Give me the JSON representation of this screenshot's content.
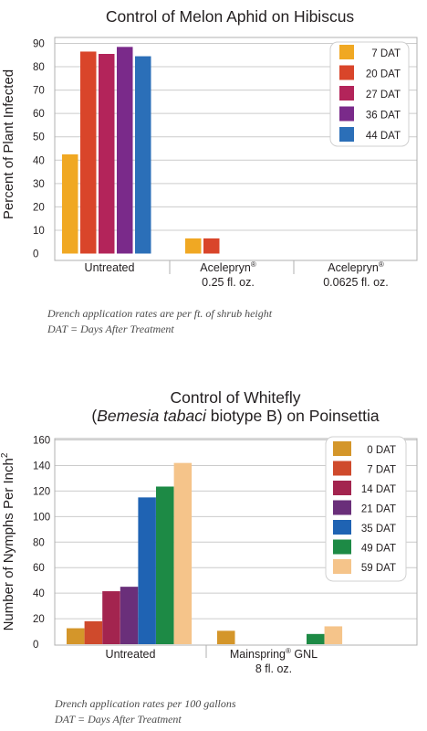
{
  "chart_data": [
    {
      "type": "bar",
      "title": "Control of Melon Aphid on Hibiscus",
      "ylabel": "Percent of Plant Infected",
      "ylim": [
        0,
        90
      ],
      "yticks": [
        "0",
        "10",
        "20",
        "30",
        "40",
        "50",
        "60",
        "70",
        "80",
        "90"
      ],
      "categories": [
        {
          "line1": "Untreated",
          "reg": "",
          "line2": ""
        },
        {
          "line1": "Acelepryn",
          "reg": "®",
          "line2": "0.25 fl. oz."
        },
        {
          "line1": "Acelepryn",
          "reg": "®",
          "line2": "0.0625 fl. oz."
        }
      ],
      "series": [
        {
          "name": "7 DAT",
          "color": "#f0a823",
          "values": [
            42.5,
            6.5,
            0
          ]
        },
        {
          "name": "20 DAT",
          "color": "#d9452a",
          "values": [
            86.5,
            6.5,
            0
          ]
        },
        {
          "name": "27 DAT",
          "color": "#b3245a",
          "values": [
            85.5,
            0,
            0
          ]
        },
        {
          "name": "36 DAT",
          "color": "#7a2a8a",
          "values": [
            88.5,
            0,
            0
          ]
        },
        {
          "name": "44 DAT",
          "color": "#2b6fb8",
          "values": [
            84.5,
            0,
            0
          ]
        }
      ],
      "grid": true,
      "legend": "top-right",
      "notes": [
        "Drench application rates are per ft. of shrub height",
        "DAT = Days After Treatment"
      ]
    },
    {
      "type": "bar",
      "title_line1": "Control of Whitefly",
      "title_line2_open": "(",
      "title_line2_italic": "Bemesia tabaci",
      "title_line2_rest": " biotype B) on Poinsettia",
      "ylabel": "Number of Nymphs Per Inch",
      "ylabel_sup": "2",
      "ylim": [
        0,
        160
      ],
      "yticks": [
        "0",
        "20",
        "40",
        "60",
        "80",
        "100",
        "120",
        "140",
        "160"
      ],
      "categories": [
        {
          "line1": "Untreated",
          "reg": "",
          "line1b": "",
          "line2": ""
        },
        {
          "line1": "Mainspring",
          "reg": "®",
          "line1b": " GNL",
          "line2": "8 fl. oz."
        }
      ],
      "series": [
        {
          "name": "0 DAT",
          "color": "#d4962a",
          "values": [
            12.5,
            10.5
          ]
        },
        {
          "name": "7 DAT",
          "color": "#cf4a2c",
          "values": [
            18,
            0
          ]
        },
        {
          "name": "14 DAT",
          "color": "#a3244f",
          "values": [
            41.5,
            0
          ]
        },
        {
          "name": "21 DAT",
          "color": "#6a2f7a",
          "values": [
            45,
            0
          ]
        },
        {
          "name": "35 DAT",
          "color": "#1f63b3",
          "values": [
            115,
            0
          ]
        },
        {
          "name": "49 DAT",
          "color": "#1d8a45",
          "values": [
            123.5,
            8
          ]
        },
        {
          "name": "59 DAT",
          "color": "#f5c48a",
          "values": [
            142,
            14
          ]
        }
      ],
      "grid": true,
      "legend": "top-right",
      "notes": [
        "Drench application rates per 100 gallons",
        "DAT = Days After Treatment"
      ]
    }
  ]
}
